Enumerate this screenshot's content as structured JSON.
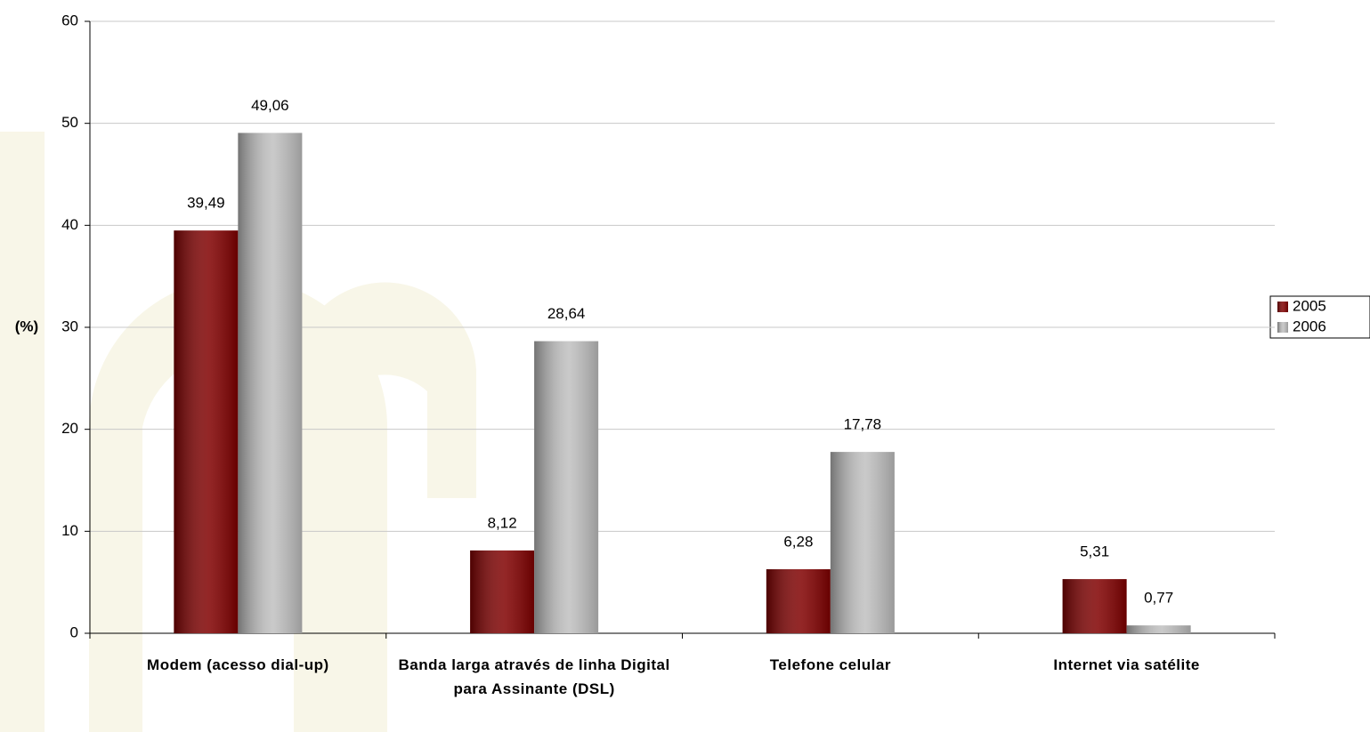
{
  "chart_data": {
    "type": "bar",
    "y_label": "(%)",
    "categories": [
      "Modem (acesso dial-up)",
      "Banda larga através de linha Digital para Assinante (DSL)",
      "Telefone celular",
      "Internet via satélite"
    ],
    "series": [
      {
        "name": "2005",
        "color": "#800000",
        "values": [
          39.49,
          8.12,
          6.28,
          5.31
        ],
        "value_labels": [
          "39,49",
          "8,12",
          "6,28",
          "5,31"
        ]
      },
      {
        "name": "2006",
        "color": "#c0c0c0",
        "values": [
          49.06,
          28.64,
          17.78,
          0.77
        ],
        "value_labels": [
          "49,06",
          "28,64",
          "17,78",
          "0,77"
        ]
      }
    ],
    "ylim": [
      0,
      60
    ],
    "yticks": [
      0,
      10,
      20,
      30,
      40,
      50,
      60
    ],
    "grid": true,
    "legend": "right"
  }
}
